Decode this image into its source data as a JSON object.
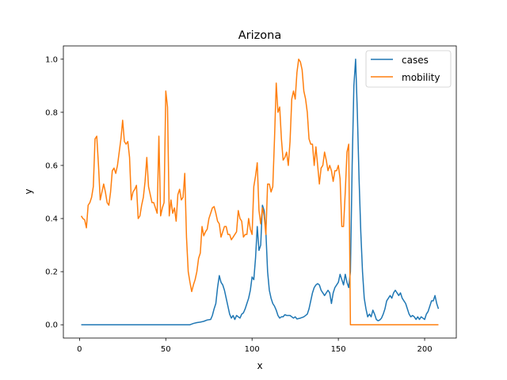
{
  "chart_data": {
    "type": "line",
    "title": "Arizona",
    "xlabel": "x",
    "ylabel": "y",
    "xlim": [
      -9.35,
      218.35
    ],
    "ylim": [
      -0.05,
      1.05
    ],
    "xticks": [
      0,
      50,
      100,
      150,
      200
    ],
    "yticks": [
      "0.0",
      "0.2",
      "0.4",
      "0.6",
      "0.8",
      "1.0"
    ],
    "legend_position": "top-right",
    "grid": false,
    "series": [
      {
        "name": "cases",
        "color": "#1f77b4",
        "points": [
          [
            1,
            0
          ],
          [
            10,
            0
          ],
          [
            20,
            0
          ],
          [
            30,
            0
          ],
          [
            40,
            0
          ],
          [
            50,
            0
          ],
          [
            60,
            0
          ],
          [
            64,
            0
          ],
          [
            66,
            0.005
          ],
          [
            68,
            0.008
          ],
          [
            70,
            0.01
          ],
          [
            72,
            0.013
          ],
          [
            74,
            0.018
          ],
          [
            76,
            0.02
          ],
          [
            77,
            0.035
          ],
          [
            78,
            0.06
          ],
          [
            79,
            0.08
          ],
          [
            80,
            0.14
          ],
          [
            81,
            0.185
          ],
          [
            82,
            0.16
          ],
          [
            83,
            0.15
          ],
          [
            84,
            0.13
          ],
          [
            85,
            0.1
          ],
          [
            86,
            0.07
          ],
          [
            87,
            0.04
          ],
          [
            88,
            0.025
          ],
          [
            89,
            0.035
          ],
          [
            90,
            0.02
          ],
          [
            91,
            0.035
          ],
          [
            92,
            0.03
          ],
          [
            93,
            0.025
          ],
          [
            94,
            0.04
          ],
          [
            95,
            0.045
          ],
          [
            96,
            0.06
          ],
          [
            97,
            0.08
          ],
          [
            98,
            0.1
          ],
          [
            99,
            0.13
          ],
          [
            100,
            0.18
          ],
          [
            101,
            0.17
          ],
          [
            102,
            0.25
          ],
          [
            103,
            0.37
          ],
          [
            104,
            0.28
          ],
          [
            105,
            0.3
          ],
          [
            106,
            0.45
          ],
          [
            107,
            0.43
          ],
          [
            108,
            0.35
          ],
          [
            109,
            0.2
          ],
          [
            110,
            0.13
          ],
          [
            111,
            0.1
          ],
          [
            112,
            0.08
          ],
          [
            113,
            0.07
          ],
          [
            114,
            0.055
          ],
          [
            115,
            0.035
          ],
          [
            116,
            0.025
          ],
          [
            117,
            0.03
          ],
          [
            118,
            0.03
          ],
          [
            119,
            0.038
          ],
          [
            120,
            0.035
          ],
          [
            122,
            0.035
          ],
          [
            124,
            0.025
          ],
          [
            125,
            0.03
          ],
          [
            126,
            0.022
          ],
          [
            128,
            0.025
          ],
          [
            130,
            0.03
          ],
          [
            132,
            0.04
          ],
          [
            133,
            0.06
          ],
          [
            134,
            0.09
          ],
          [
            135,
            0.12
          ],
          [
            136,
            0.14
          ],
          [
            137,
            0.15
          ],
          [
            138,
            0.155
          ],
          [
            139,
            0.15
          ],
          [
            140,
            0.13
          ],
          [
            141,
            0.12
          ],
          [
            142,
            0.11
          ],
          [
            143,
            0.12
          ],
          [
            144,
            0.13
          ],
          [
            145,
            0.12
          ],
          [
            146,
            0.08
          ],
          [
            147,
            0.12
          ],
          [
            148,
            0.14
          ],
          [
            149,
            0.15
          ],
          [
            150,
            0.16
          ],
          [
            151,
            0.19
          ],
          [
            152,
            0.17
          ],
          [
            153,
            0.15
          ],
          [
            154,
            0.19
          ],
          [
            155,
            0.16
          ],
          [
            156,
            0.14
          ],
          [
            157,
            0.2
          ],
          [
            158,
            0.6
          ],
          [
            159,
            0.9
          ],
          [
            160,
            1.0
          ],
          [
            161,
            0.8
          ],
          [
            162,
            0.55
          ],
          [
            163,
            0.35
          ],
          [
            164,
            0.2
          ],
          [
            165,
            0.1
          ],
          [
            166,
            0.06
          ],
          [
            167,
            0.03
          ],
          [
            168,
            0.04
          ],
          [
            169,
            0.03
          ],
          [
            170,
            0.055
          ],
          [
            171,
            0.04
          ],
          [
            172,
            0.02
          ],
          [
            173,
            0.015
          ],
          [
            174,
            0.018
          ],
          [
            175,
            0.025
          ],
          [
            176,
            0.04
          ],
          [
            177,
            0.06
          ],
          [
            178,
            0.09
          ],
          [
            179,
            0.1
          ],
          [
            180,
            0.11
          ],
          [
            181,
            0.1
          ],
          [
            182,
            0.12
          ],
          [
            183,
            0.13
          ],
          [
            184,
            0.12
          ],
          [
            185,
            0.11
          ],
          [
            186,
            0.12
          ],
          [
            187,
            0.1
          ],
          [
            188,
            0.09
          ],
          [
            189,
            0.08
          ],
          [
            190,
            0.06
          ],
          [
            191,
            0.04
          ],
          [
            192,
            0.03
          ],
          [
            193,
            0.035
          ],
          [
            194,
            0.03
          ],
          [
            195,
            0.02
          ],
          [
            196,
            0.03
          ],
          [
            197,
            0.02
          ],
          [
            198,
            0.03
          ],
          [
            199,
            0.025
          ],
          [
            200,
            0.02
          ],
          [
            201,
            0.04
          ],
          [
            202,
            0.05
          ],
          [
            203,
            0.07
          ],
          [
            204,
            0.09
          ],
          [
            205,
            0.09
          ],
          [
            206,
            0.11
          ],
          [
            207,
            0.08
          ],
          [
            208,
            0.06
          ]
        ]
      },
      {
        "name": "mobility",
        "color": "#ff7f0e",
        "points": [
          [
            1,
            0.41
          ],
          [
            2,
            0.4
          ],
          [
            3,
            0.395
          ],
          [
            4,
            0.365
          ],
          [
            5,
            0.45
          ],
          [
            6,
            0.46
          ],
          [
            7,
            0.48
          ],
          [
            8,
            0.52
          ],
          [
            9,
            0.7
          ],
          [
            10,
            0.71
          ],
          [
            11,
            0.6
          ],
          [
            12,
            0.47
          ],
          [
            13,
            0.5
          ],
          [
            14,
            0.53
          ],
          [
            15,
            0.5
          ],
          [
            16,
            0.46
          ],
          [
            17,
            0.45
          ],
          [
            18,
            0.5
          ],
          [
            19,
            0.58
          ],
          [
            20,
            0.59
          ],
          [
            21,
            0.57
          ],
          [
            22,
            0.6
          ],
          [
            23,
            0.65
          ],
          [
            24,
            0.7
          ],
          [
            25,
            0.77
          ],
          [
            26,
            0.69
          ],
          [
            27,
            0.68
          ],
          [
            28,
            0.69
          ],
          [
            29,
            0.63
          ],
          [
            30,
            0.47
          ],
          [
            31,
            0.5
          ],
          [
            32,
            0.51
          ],
          [
            33,
            0.525
          ],
          [
            34,
            0.4
          ],
          [
            35,
            0.41
          ],
          [
            36,
            0.45
          ],
          [
            37,
            0.48
          ],
          [
            38,
            0.54
          ],
          [
            39,
            0.63
          ],
          [
            40,
            0.52
          ],
          [
            41,
            0.49
          ],
          [
            42,
            0.46
          ],
          [
            43,
            0.46
          ],
          [
            44,
            0.44
          ],
          [
            45,
            0.42
          ],
          [
            46,
            0.71
          ],
          [
            47,
            0.41
          ],
          [
            48,
            0.44
          ],
          [
            49,
            0.46
          ],
          [
            50,
            0.88
          ],
          [
            51,
            0.82
          ],
          [
            52,
            0.41
          ],
          [
            53,
            0.47
          ],
          [
            54,
            0.42
          ],
          [
            55,
            0.44
          ],
          [
            56,
            0.39
          ],
          [
            57,
            0.49
          ],
          [
            58,
            0.51
          ],
          [
            59,
            0.47
          ],
          [
            60,
            0.48
          ],
          [
            61,
            0.57
          ],
          [
            62,
            0.33
          ],
          [
            63,
            0.2
          ],
          [
            64,
            0.16
          ],
          [
            65,
            0.125
          ],
          [
            66,
            0.15
          ],
          [
            67,
            0.17
          ],
          [
            68,
            0.2
          ],
          [
            69,
            0.25
          ],
          [
            70,
            0.27
          ],
          [
            71,
            0.37
          ],
          [
            72,
            0.335
          ],
          [
            73,
            0.35
          ],
          [
            74,
            0.36
          ],
          [
            75,
            0.4
          ],
          [
            76,
            0.42
          ],
          [
            77,
            0.44
          ],
          [
            78,
            0.445
          ],
          [
            79,
            0.42
          ],
          [
            80,
            0.39
          ],
          [
            81,
            0.38
          ],
          [
            82,
            0.33
          ],
          [
            83,
            0.35
          ],
          [
            84,
            0.37
          ],
          [
            85,
            0.37
          ],
          [
            86,
            0.34
          ],
          [
            87,
            0.34
          ],
          [
            88,
            0.32
          ],
          [
            89,
            0.33
          ],
          [
            90,
            0.34
          ],
          [
            91,
            0.35
          ],
          [
            92,
            0.43
          ],
          [
            93,
            0.4
          ],
          [
            94,
            0.39
          ],
          [
            95,
            0.33
          ],
          [
            96,
            0.34
          ],
          [
            97,
            0.34
          ],
          [
            98,
            0.4
          ],
          [
            99,
            0.36
          ],
          [
            100,
            0.34
          ],
          [
            101,
            0.52
          ],
          [
            102,
            0.56
          ],
          [
            103,
            0.61
          ],
          [
            104,
            0.43
          ],
          [
            105,
            0.38
          ],
          [
            106,
            0.44
          ],
          [
            107,
            0.41
          ],
          [
            108,
            0.34
          ],
          [
            109,
            0.53
          ],
          [
            110,
            0.53
          ],
          [
            111,
            0.5
          ],
          [
            112,
            0.52
          ],
          [
            113,
            0.7
          ],
          [
            114,
            0.91
          ],
          [
            115,
            0.8
          ],
          [
            116,
            0.82
          ],
          [
            117,
            0.7
          ],
          [
            118,
            0.62
          ],
          [
            119,
            0.63
          ],
          [
            120,
            0.65
          ],
          [
            121,
            0.6
          ],
          [
            122,
            0.69
          ],
          [
            123,
            0.85
          ],
          [
            124,
            0.88
          ],
          [
            125,
            0.85
          ],
          [
            126,
            0.95
          ],
          [
            127,
            1.0
          ],
          [
            128,
            0.99
          ],
          [
            129,
            0.96
          ],
          [
            130,
            0.88
          ],
          [
            131,
            0.85
          ],
          [
            132,
            0.8
          ],
          [
            133,
            0.7
          ],
          [
            134,
            0.68
          ],
          [
            135,
            0.68
          ],
          [
            136,
            0.6
          ],
          [
            137,
            0.67
          ],
          [
            138,
            0.6
          ],
          [
            139,
            0.53
          ],
          [
            140,
            0.59
          ],
          [
            141,
            0.6
          ],
          [
            142,
            0.65
          ],
          [
            143,
            0.62
          ],
          [
            144,
            0.58
          ],
          [
            145,
            0.6
          ],
          [
            146,
            0.58
          ],
          [
            147,
            0.54
          ],
          [
            148,
            0.58
          ],
          [
            149,
            0.58
          ],
          [
            150,
            0.6
          ],
          [
            151,
            0.55
          ],
          [
            152,
            0.37
          ],
          [
            153,
            0.37
          ],
          [
            154,
            0.5
          ],
          [
            155,
            0.65
          ],
          [
            156,
            0.68
          ],
          [
            157,
            0.0
          ],
          [
            160,
            0.0
          ],
          [
            170,
            0.0
          ],
          [
            180,
            0.0
          ],
          [
            190,
            0.0
          ],
          [
            200,
            0.0
          ],
          [
            208,
            0.0
          ]
        ]
      }
    ]
  }
}
